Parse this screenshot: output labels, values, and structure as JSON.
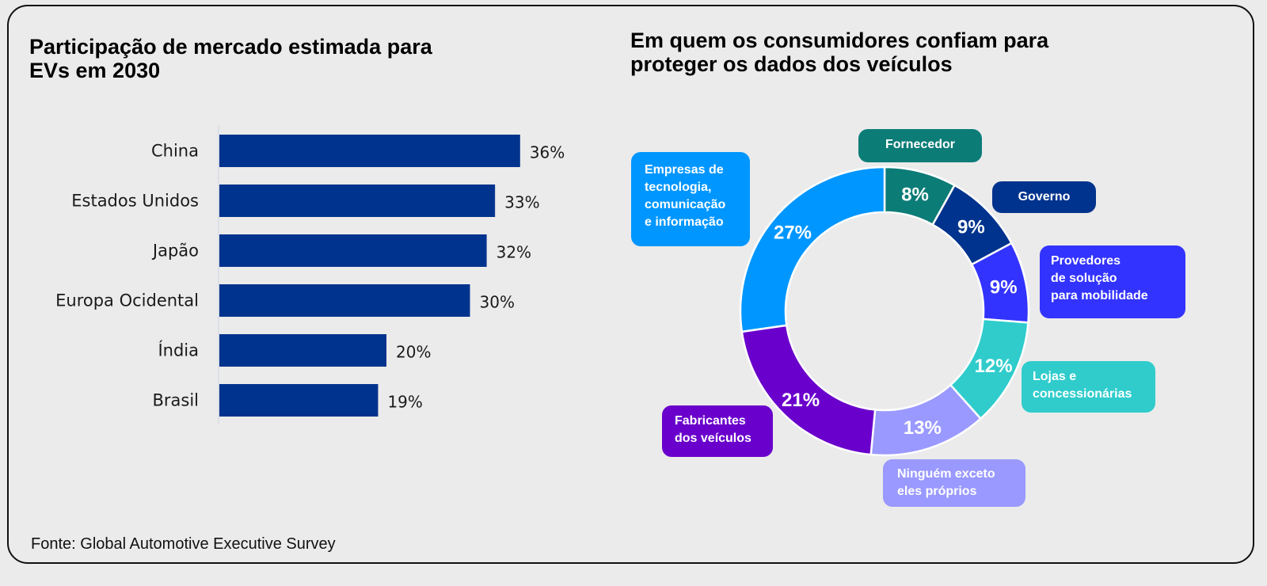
{
  "chart_data": [
    {
      "type": "bar",
      "orientation": "horizontal",
      "title": "Participação de mercado estimada para EVs em 2030",
      "categories": [
        "China",
        "Estados Unidos",
        "Japão",
        "Europa Ocidental",
        "Índia",
        "Brasil"
      ],
      "values": [
        36,
        33,
        32,
        30,
        20,
        19
      ],
      "value_labels": [
        "36%",
        "33%",
        "32%",
        "30%",
        "20%",
        "19%"
      ],
      "unit": "%",
      "xlabel": "",
      "ylabel": "",
      "xlim": [
        0,
        40
      ],
      "grid": false,
      "color": "#00338d"
    },
    {
      "type": "pie",
      "subtype": "donut",
      "title": "Em quem os consumidores confiam para proteger os dados dos veículos",
      "start": "top",
      "direction": "clockwise",
      "slices": [
        {
          "name": "Fornecedor",
          "value": 8,
          "label": "8%",
          "color": "#0c7c77",
          "legend_lines": [
            "Fornecedor"
          ]
        },
        {
          "name": "Governo",
          "value": 9,
          "label": "9%",
          "color": "#00338d",
          "legend_lines": [
            "Governo"
          ]
        },
        {
          "name": "Provedores de solução para mobilidade",
          "value": 9,
          "label": "9%",
          "color": "#3333ff",
          "legend_lines": [
            "Provedores",
            "de solução",
            "para mobilidade"
          ]
        },
        {
          "name": "Lojas e concessionárias",
          "value": 12,
          "label": "12%",
          "color": "#30cccc",
          "legend_lines": [
            "Lojas e",
            "concessionárias"
          ]
        },
        {
          "name": "Ninguém exceto eles próprios",
          "value": 13,
          "label": "13%",
          "color": "#9a99ff",
          "legend_lines": [
            "Ninguém exceto",
            "eles próprios"
          ]
        },
        {
          "name": "Fabricantes dos veículos",
          "value": 21,
          "label": "21%",
          "color": "#6a00cc",
          "legend_lines": [
            "Fabricantes",
            "dos veículos"
          ]
        },
        {
          "name": "Empresas de tecnologia, comunicação e informação",
          "value": 27,
          "label": "27%",
          "color": "#0096ff",
          "legend_lines": [
            "Empresas de",
            "tecnologia,",
            "comunicação",
            "e informação"
          ]
        }
      ],
      "legend": "callouts-around"
    }
  ],
  "titles": {
    "left": "Participação de mercado estimada para EVs em 2030",
    "right": "Em quem os consumidores confiam para proteger os dados dos veículos"
  },
  "source": "Fonte: Global Automotive Executive Survey"
}
